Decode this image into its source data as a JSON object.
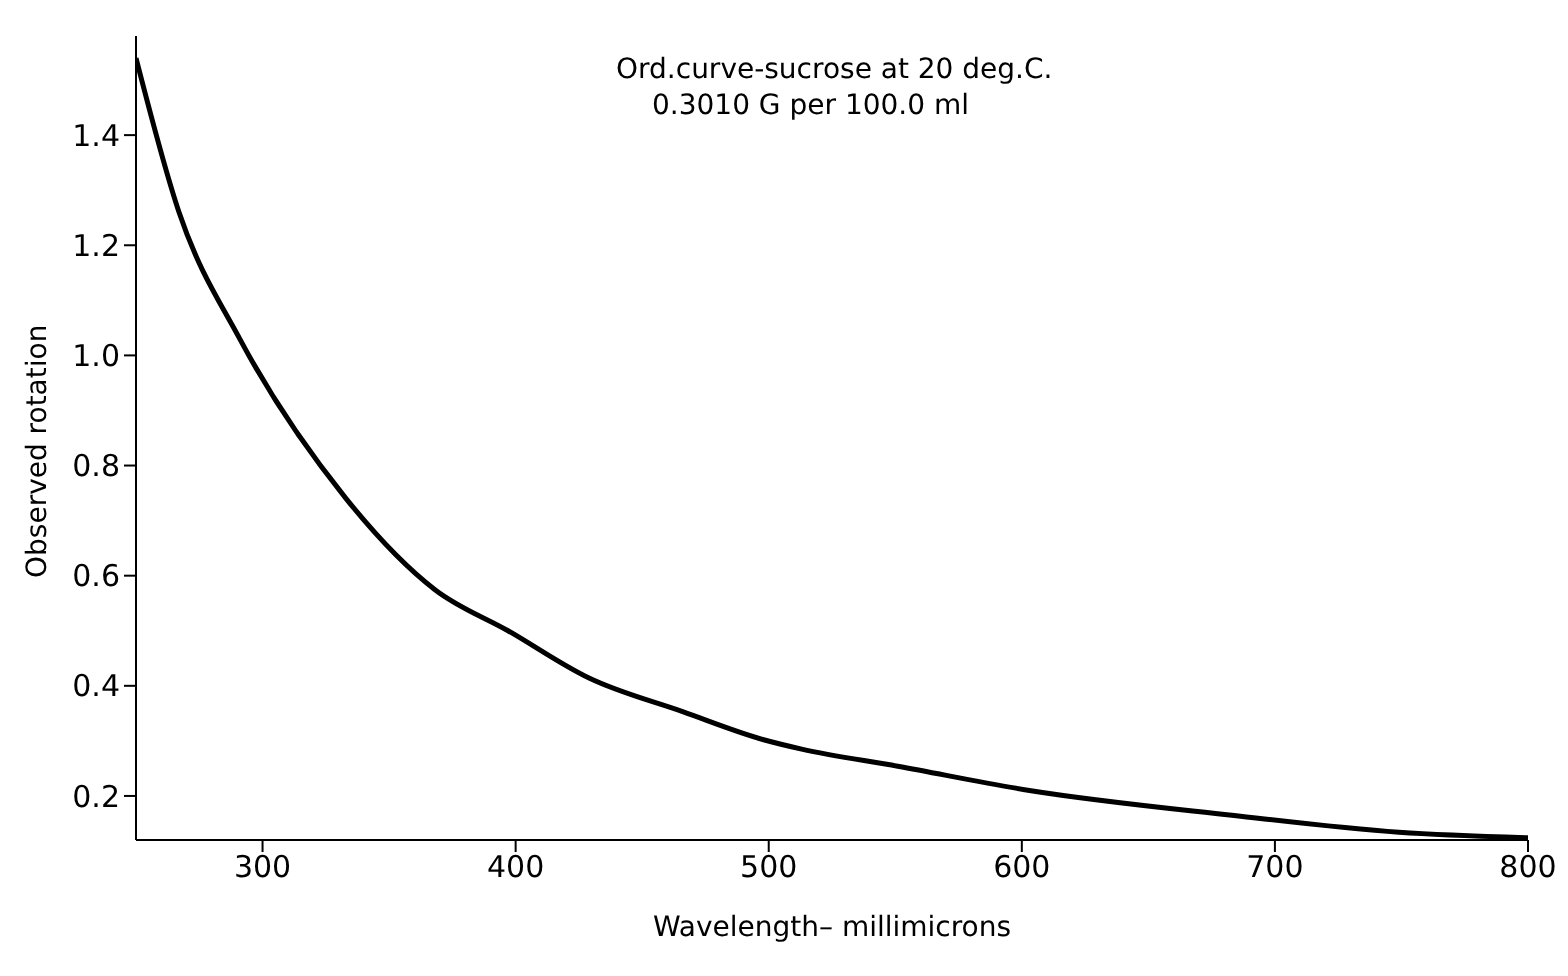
{
  "chart_data": {
    "type": "line",
    "title": "Ord.curve-sucrose at 20 deg.C.",
    "subtitle": "0.3010 G per 100.0 ml",
    "xlabel": "Wavelength– millimicrons",
    "ylabel": "Observed rotation",
    "series": [
      {
        "color": "#000000",
        "x": [
          250,
          267,
          291,
          333,
          368,
          397,
          429,
          466,
          498,
          513,
          551,
          603,
          683,
          749,
          800
        ],
        "values": [
          1.54,
          1.26,
          1.03,
          0.74,
          0.575,
          0.5,
          0.414,
          0.353,
          0.302,
          0.285,
          0.254,
          0.21,
          0.165,
          0.134,
          0.124
        ]
      }
    ],
    "xlim": [
      250,
      800
    ],
    "xticks": [
      300,
      400,
      500,
      600,
      700,
      800
    ],
    "ylim": [
      0.12,
      1.58
    ],
    "yticks": [
      0.2,
      0.4,
      0.6,
      0.8,
      {
        "value": 1,
        "label": "1.0"
      },
      1.2,
      1.4
    ],
    "grid": false,
    "marker": "none",
    "line_style": "solid"
  }
}
